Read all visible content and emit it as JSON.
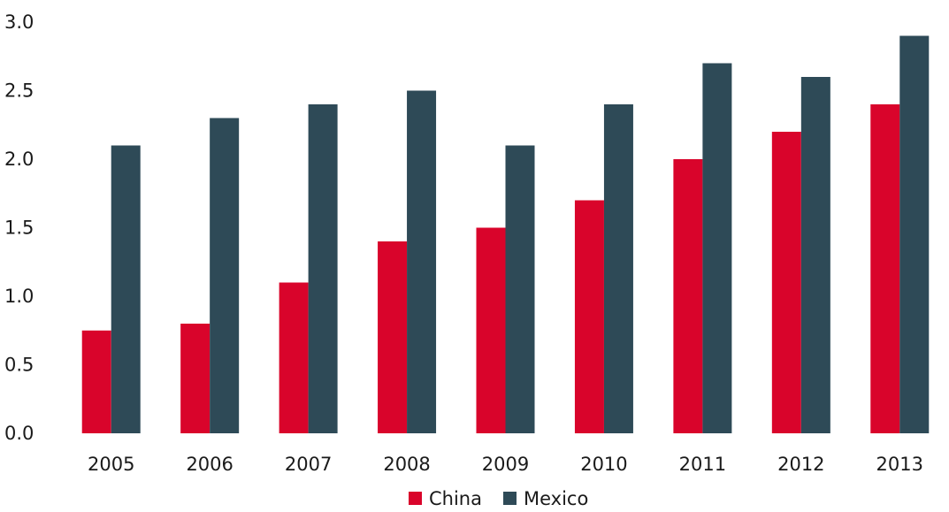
{
  "chart_data": {
    "type": "bar",
    "categories": [
      "2005",
      "2006",
      "2007",
      "2008",
      "2009",
      "2010",
      "2011",
      "2012",
      "2013"
    ],
    "series": [
      {
        "name": "China",
        "color": "#d9042b",
        "values": [
          0.75,
          0.8,
          1.1,
          1.4,
          1.5,
          1.7,
          2.0,
          2.2,
          2.4
        ]
      },
      {
        "name": "Mexico",
        "color": "#2e4a57",
        "values": [
          2.1,
          2.3,
          2.4,
          2.5,
          2.1,
          2.4,
          2.7,
          2.6,
          2.9
        ]
      }
    ],
    "yticks": [
      "0.0",
      "0.5",
      "1.0",
      "1.5",
      "2.0",
      "2.5",
      "3.0"
    ],
    "ylim": [
      0,
      3.0
    ],
    "grid": false,
    "legend": "bottom-center"
  }
}
